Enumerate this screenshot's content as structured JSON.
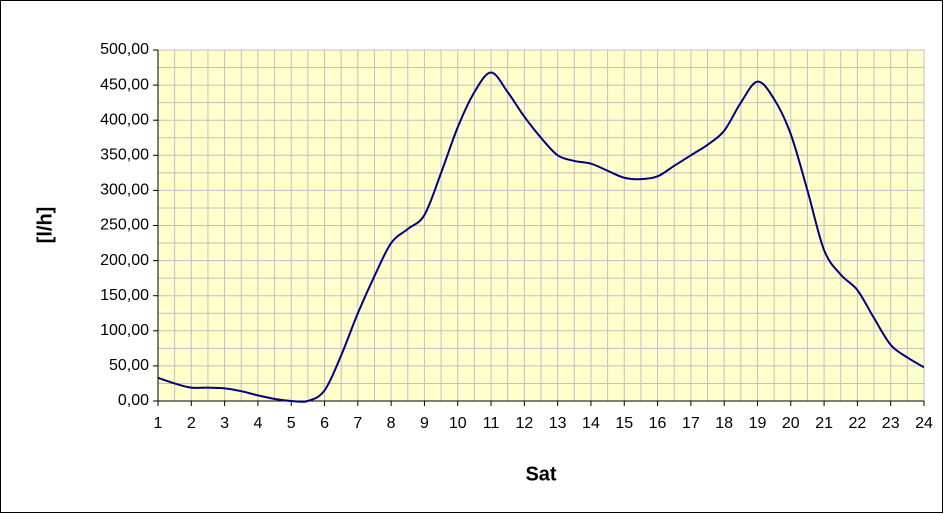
{
  "chart_data": {
    "type": "line",
    "x_label": "Sat",
    "y_label": "[l/h]",
    "x": [
      1,
      1.5,
      2,
      2.5,
      3,
      3.5,
      4,
      4.5,
      5,
      5.5,
      6,
      6.5,
      7,
      7.5,
      8,
      8.5,
      9,
      9.5,
      10,
      10.5,
      11,
      11.5,
      12,
      12.5,
      13,
      13.5,
      14,
      14.5,
      15,
      15.5,
      16,
      16.5,
      17,
      17.5,
      18,
      18.5,
      19,
      19.5,
      20,
      20.5,
      21,
      21.5,
      22,
      22.5,
      23,
      23.5,
      24
    ],
    "series": [
      {
        "color": "#000080",
        "values": [
          33,
          25,
          19,
          19,
          18,
          14,
          8,
          3,
          0,
          0,
          15,
          65,
          125,
          178,
          225,
          245,
          265,
          325,
          390,
          440,
          468,
          440,
          405,
          375,
          350,
          342,
          338,
          328,
          318,
          316,
          320,
          335,
          350,
          365,
          385,
          425,
          455,
          430,
          380,
          300,
          215,
          180,
          158,
          118,
          80,
          62,
          48
        ]
      }
    ],
    "xlim": [
      1,
      24
    ],
    "xticks": [
      1,
      2,
      3,
      4,
      5,
      6,
      7,
      8,
      9,
      10,
      11,
      12,
      13,
      14,
      15,
      16,
      17,
      18,
      19,
      20,
      21,
      22,
      23,
      24
    ],
    "ylim": [
      0,
      500
    ],
    "yticks": [
      {
        "value": 0,
        "label": "0,00"
      },
      {
        "value": 50,
        "label": "50,00"
      },
      {
        "value": 100,
        "label": "100,00"
      },
      {
        "value": 150,
        "label": "150,00"
      },
      {
        "value": 200,
        "label": "200,00"
      },
      {
        "value": 250,
        "label": "250,00"
      },
      {
        "value": 300,
        "label": "300,00"
      },
      {
        "value": 350,
        "label": "350,00"
      },
      {
        "value": 400,
        "label": "400,00"
      },
      {
        "value": 450,
        "label": "450,00"
      },
      {
        "value": 500,
        "label": "500,00"
      }
    ],
    "grid": true,
    "background": "#ffffcc"
  }
}
